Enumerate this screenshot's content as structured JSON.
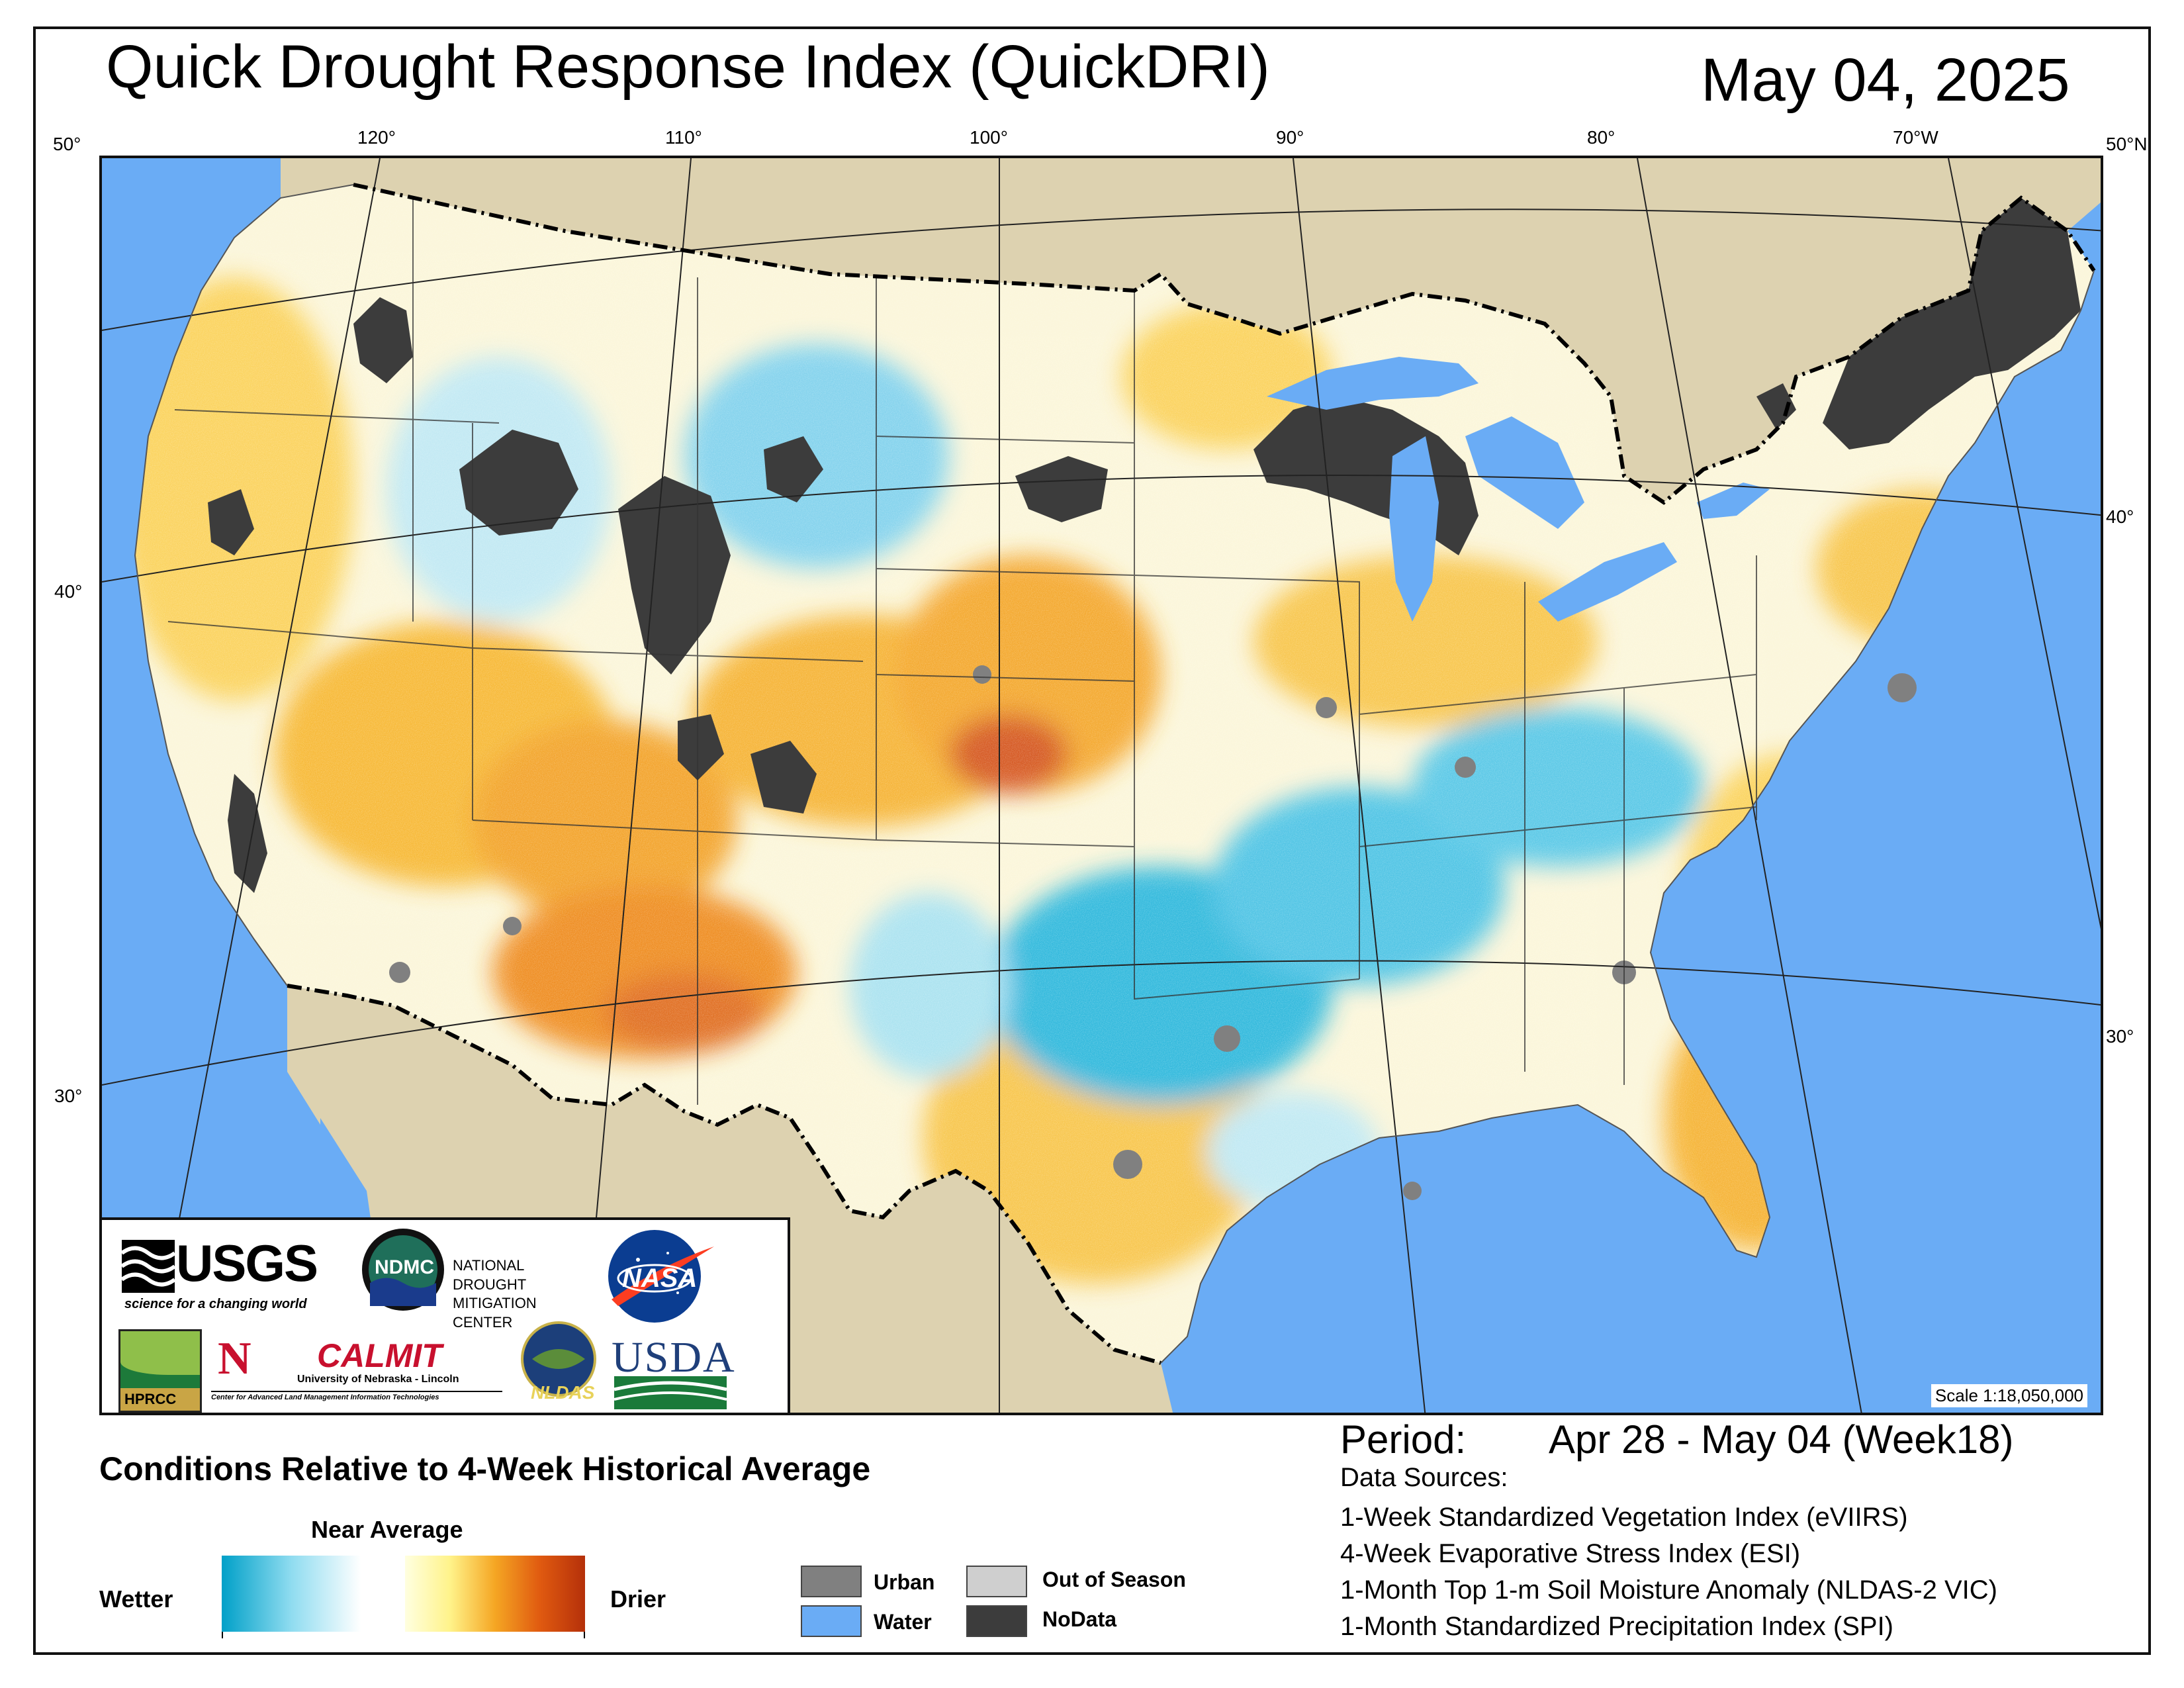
{
  "header": {
    "title": "Quick Drought Response Index (QuickDRI)",
    "date": "May 04, 2025"
  },
  "graticule": {
    "top_labels": [
      "50°",
      "120°",
      "110°",
      "100°",
      "90°",
      "80°",
      "70°W",
      "50°N"
    ],
    "left_labels": [
      "40°",
      "30°"
    ],
    "right_labels": [
      "40°",
      "30°"
    ]
  },
  "map": {
    "scale": "Scale 1:18,050,000",
    "colors": {
      "water": "#6aacf5",
      "land_outside": "#ddd2b0",
      "nodata": "#3c3c3c",
      "urban": "#808080",
      "wetter_dark": "#00a0c8",
      "wetter_light": "#8fdcf0",
      "near_average": "#ffffff",
      "drier_light": "#fff38a",
      "drier_mid": "#f5a623",
      "drier_dark": "#c0360a"
    }
  },
  "logos": {
    "usgs": "USGS",
    "usgs_tagline": "science for a changing world",
    "ndmc": "NDMC",
    "ndmc_name_1": "NATIONAL DROUGHT",
    "ndmc_name_2": "MITIGATION CENTER",
    "nasa": "NASA",
    "hprcc": "HPRCC",
    "calmit": "CALMIT",
    "calmit_line_1": "University of Nebraska - Lincoln",
    "calmit_line_2": "Center for Advanced Land Management Information Technologies",
    "nldas": "NLDAS",
    "usda": "USDA"
  },
  "legend": {
    "heading": "Conditions Relative to 4-Week Historical Average",
    "near_average": "Near Average",
    "wetter": "Wetter",
    "drier": "Drier",
    "categories": [
      {
        "label": "Urban",
        "color": "#808080"
      },
      {
        "label": "Water",
        "color": "#6aacf5"
      },
      {
        "label": "Out of Season",
        "color": "#cfcfcf"
      },
      {
        "label": "NoData",
        "color": "#3c3c3c"
      }
    ]
  },
  "period": {
    "label": "Period:",
    "value": "Apr 28 - May 04 (Week18)"
  },
  "data_sources": {
    "heading": "Data Sources:",
    "items": [
      "1-Week Standardized Vegetation Index (eVIIRS)",
      "4-Week Evaporative Stress Index (ESI)",
      "1-Month Top 1-m Soil Moisture Anomaly (NLDAS-2 VIC)",
      "1-Month Standardized Precipitation Index (SPI)"
    ]
  }
}
